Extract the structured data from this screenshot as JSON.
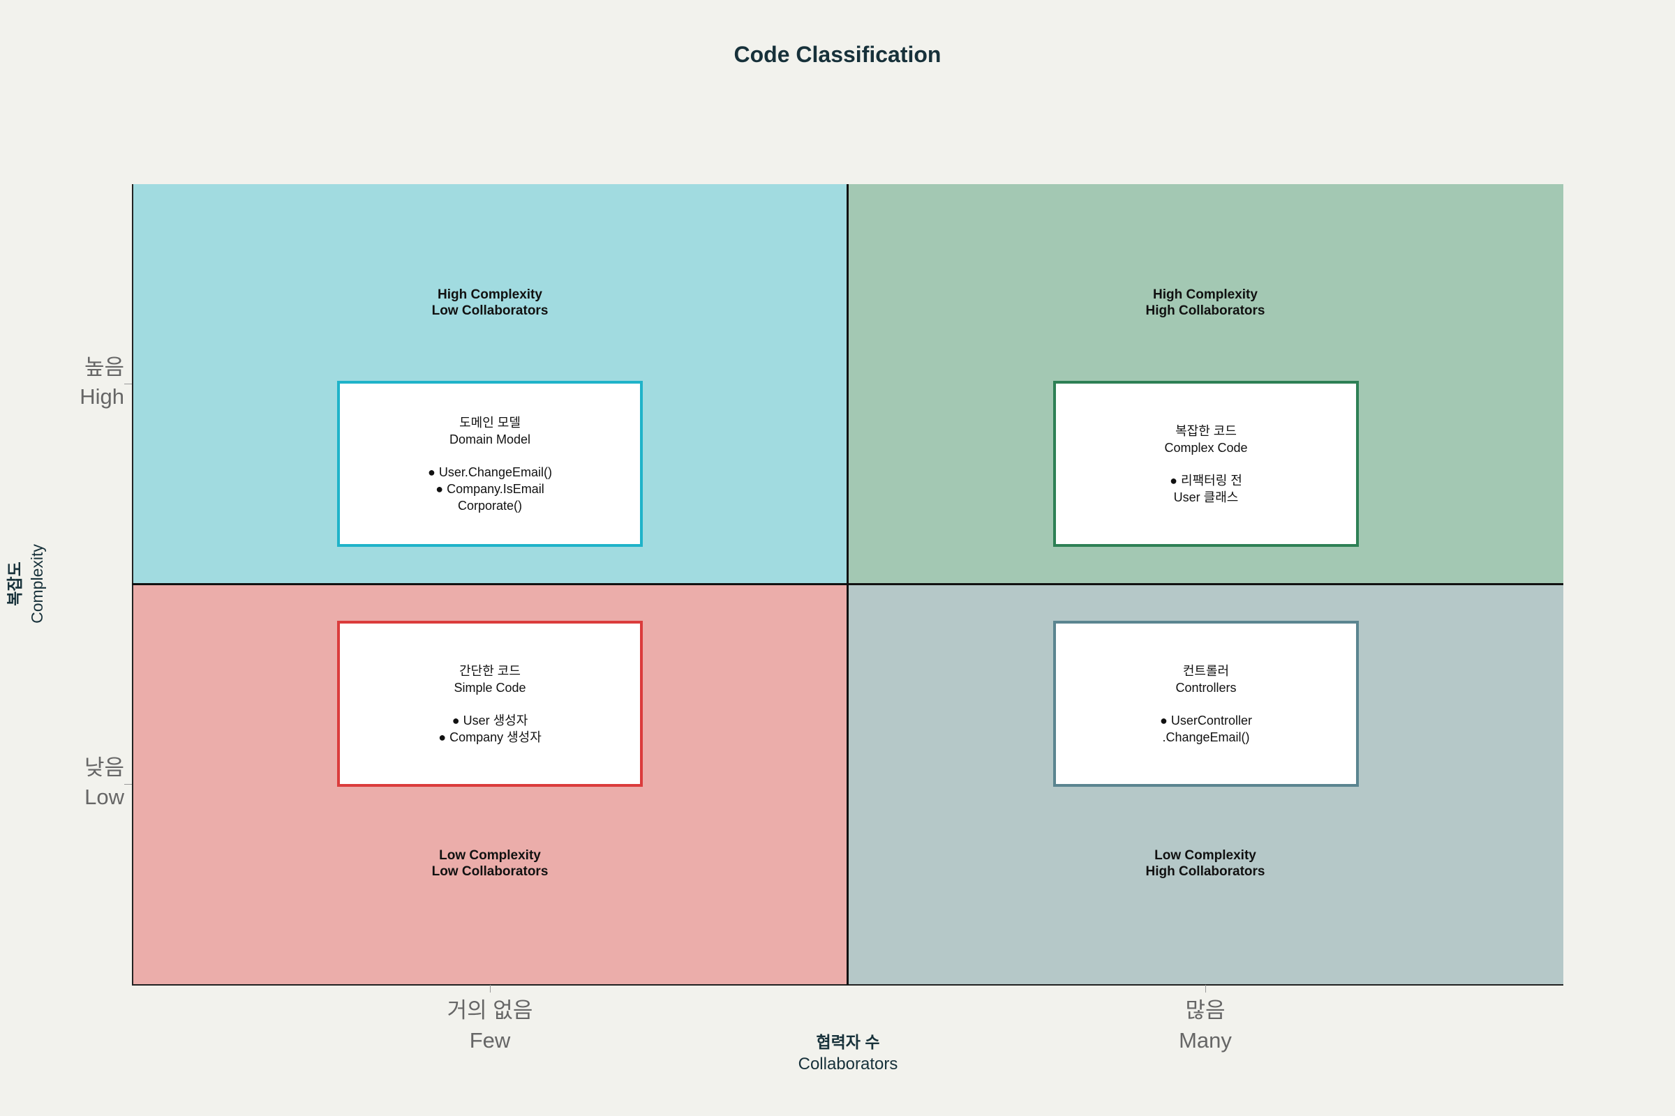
{
  "title": "Code Classification",
  "colors": {
    "background": "#f2f2ed",
    "quad_top_left": "#a1dbe0",
    "quad_top_right": "#a3c8b3",
    "quad_bottom_left": "#ebadaa",
    "quad_bottom_right": "#b5c8c8",
    "border_domain": "#1fb3c9",
    "border_complex": "#2e8055",
    "border_simple": "#db3c3c",
    "border_controllers": "#5b8590"
  },
  "axes": {
    "x": {
      "title_ko": "협력자 수",
      "title_en": "Collaborators",
      "ticks": [
        {
          "ko": "거의 없음",
          "en": "Few"
        },
        {
          "ko": "많음",
          "en": "Many"
        }
      ]
    },
    "y": {
      "title_ko": "복잡도",
      "title_en": "Complexity",
      "ticks": [
        {
          "ko": "높음",
          "en": "High"
        },
        {
          "ko": "낮음",
          "en": "Low"
        }
      ]
    }
  },
  "quadrants": {
    "top_left": {
      "label_line1": "High Complexity",
      "label_line2": "Low Collaborators",
      "box_title_ko": "도메인 모델",
      "box_title_en": "Domain Model",
      "box_items": [
        "● User.ChangeEmail()",
        "● Company.IsEmail",
        "Corporate()"
      ]
    },
    "top_right": {
      "label_line1": "High Complexity",
      "label_line2": "High Collaborators",
      "box_title_ko": "복잡한 코드",
      "box_title_en": "Complex Code",
      "box_items": [
        "● 리팩터링 전",
        "User 클래스"
      ]
    },
    "bottom_left": {
      "label_line1": "Low Complexity",
      "label_line2": "Low Collaborators",
      "box_title_ko": "간단한 코드",
      "box_title_en": "Simple Code",
      "box_items": [
        "● User 생성자",
        "● Company 생성자"
      ]
    },
    "bottom_right": {
      "label_line1": "Low Complexity",
      "label_line2": "High Collaborators",
      "box_title_ko": "컨트롤러",
      "box_title_en": "Controllers",
      "box_items": [
        "● UserController",
        ".ChangeEmail()"
      ]
    }
  }
}
